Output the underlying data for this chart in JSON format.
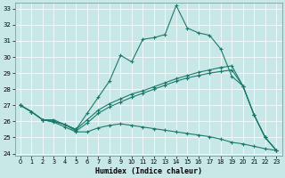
{
  "xlabel": "Humidex (Indice chaleur)",
  "xlim_min": -0.5,
  "xlim_max": 23.5,
  "ylim_min": 23.85,
  "ylim_max": 33.35,
  "yticks": [
    24,
    25,
    26,
    27,
    28,
    29,
    30,
    31,
    32,
    33
  ],
  "xticks": [
    0,
    1,
    2,
    3,
    4,
    5,
    6,
    7,
    8,
    9,
    10,
    11,
    12,
    13,
    14,
    15,
    16,
    17,
    18,
    19,
    20,
    21,
    22,
    23
  ],
  "bg_color": "#c8e8e8",
  "line_color": "#1a7a6a",
  "line1_x": [
    0,
    1,
    2,
    3,
    4,
    5,
    6,
    7,
    8,
    9,
    10,
    11,
    12,
    13,
    14,
    15,
    16,
    17,
    18,
    19,
    20,
    21,
    22,
    23
  ],
  "line1_y": [
    27.0,
    26.6,
    26.1,
    26.0,
    25.8,
    25.5,
    26.5,
    27.5,
    28.5,
    30.1,
    29.7,
    31.1,
    31.2,
    31.4,
    33.2,
    31.8,
    31.5,
    31.35,
    30.5,
    28.8,
    28.2,
    26.4,
    25.0,
    24.2
  ],
  "line2_x": [
    0,
    1,
    2,
    3,
    4,
    5,
    6,
    7,
    8,
    9,
    10,
    11,
    12,
    13,
    14,
    15,
    16,
    17,
    18,
    19,
    20,
    21,
    22,
    23
  ],
  "line2_y": [
    27.0,
    26.6,
    26.1,
    26.1,
    25.8,
    25.5,
    26.1,
    26.7,
    27.1,
    27.4,
    27.7,
    27.9,
    28.15,
    28.4,
    28.65,
    28.85,
    29.05,
    29.2,
    29.35,
    29.45,
    28.2,
    26.4,
    25.0,
    24.2
  ],
  "line3_x": [
    0,
    1,
    2,
    3,
    4,
    5,
    6,
    7,
    8,
    9,
    10,
    11,
    12,
    13,
    14,
    15,
    16,
    17,
    18,
    19,
    20,
    21,
    22,
    23
  ],
  "line3_y": [
    27.0,
    26.6,
    26.1,
    26.0,
    25.8,
    25.4,
    25.9,
    26.5,
    26.9,
    27.2,
    27.5,
    27.75,
    28.0,
    28.25,
    28.5,
    28.7,
    28.85,
    29.0,
    29.1,
    29.2,
    28.2,
    26.4,
    25.0,
    24.2
  ],
  "line4_x": [
    0,
    1,
    2,
    3,
    4,
    5,
    6,
    7,
    8,
    9,
    10,
    11,
    12,
    13,
    14,
    15,
    16,
    17,
    18,
    19,
    20,
    21,
    22,
    23
  ],
  "line4_y": [
    27.0,
    26.6,
    26.1,
    25.95,
    25.65,
    25.35,
    25.35,
    25.6,
    25.75,
    25.85,
    25.75,
    25.65,
    25.55,
    25.45,
    25.35,
    25.25,
    25.15,
    25.05,
    24.9,
    24.7,
    24.6,
    24.45,
    24.3,
    24.2
  ]
}
